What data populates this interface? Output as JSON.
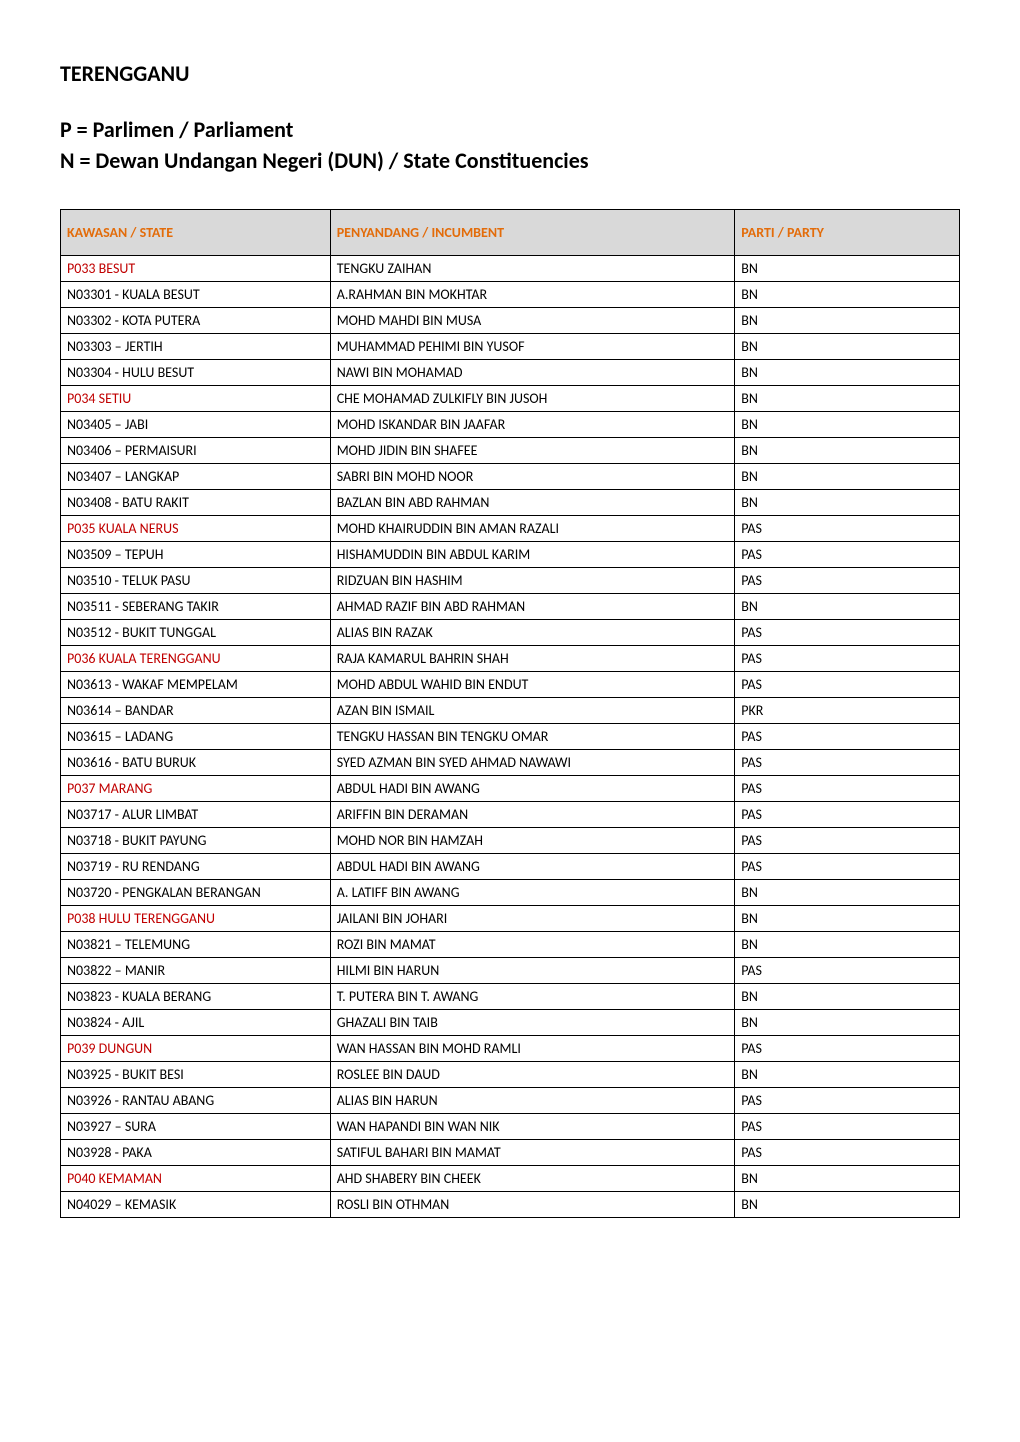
{
  "title": "TERENGGANU",
  "subtitle_line1": "P = Parlimen / Parliament",
  "subtitle_line2": "N = Dewan Undangan Negeri (DUN) / State Constituencies",
  "table": {
    "header_bg": "#d9d9d9",
    "header_color": "#e36c0a",
    "p_row_color": "#c00000",
    "normal_color": "#000000",
    "border_color": "#000000",
    "columns": [
      "KAWASAN / STATE",
      "PENYANDANG / INCUMBENT",
      "PARTI / PARTY"
    ],
    "groups": [
      {
        "p": {
          "kawasan": "P033 BESUT",
          "penyandang": "TENGKU ZAIHAN",
          "parti": "BN"
        },
        "n": [
          {
            "kawasan": "N03301 - KUALA BESUT",
            "penyandang": "A.RAHMAN BIN MOKHTAR",
            "parti": "BN"
          },
          {
            "kawasan": "N03302 - KOTA PUTERA",
            "penyandang": "MOHD MAHDI BIN MUSA",
            "parti": "BN"
          },
          {
            "kawasan": "N03303 – JERTIH",
            "penyandang": "MUHAMMAD PEHIMI BIN YUSOF",
            "parti": "BN"
          },
          {
            "kawasan": "N03304 - HULU BESUT",
            "penyandang": "NAWI BIN MOHAMAD",
            "parti": "BN"
          }
        ]
      },
      {
        "p": {
          "kawasan": "P034 SETIU",
          "penyandang": "CHE MOHAMAD ZULKIFLY BIN JUSOH",
          "parti": "BN"
        },
        "n": [
          {
            "kawasan": "N03405 – JABI",
            "penyandang": "MOHD ISKANDAR BIN JAAFAR",
            "parti": "BN"
          },
          {
            "kawasan": "N03406 – PERMAISURI",
            "penyandang": "MOHD JIDIN BIN SHAFEE",
            "parti": "BN"
          },
          {
            "kawasan": "N03407 – LANGKAP",
            "penyandang": "SABRI BIN MOHD NOOR",
            "parti": "BN"
          },
          {
            "kawasan": "N03408 - BATU RAKIT",
            "penyandang": "BAZLAN BIN ABD RAHMAN",
            "parti": "BN"
          }
        ]
      },
      {
        "p": {
          "kawasan": "P035 KUALA NERUS",
          "penyandang": "MOHD KHAIRUDDIN BIN AMAN RAZALI",
          "parti": "PAS"
        },
        "n": [
          {
            "kawasan": "N03509 – TEPUH",
            "penyandang": "HISHAMUDDIN BIN ABDUL KARIM",
            "parti": "PAS"
          },
          {
            "kawasan": "N03510 - TELUK PASU",
            "penyandang": "RIDZUAN BIN HASHIM",
            "parti": "PAS"
          },
          {
            "kawasan": "N03511 - SEBERANG TAKIR",
            "penyandang": "AHMAD RAZIF BIN ABD RAHMAN",
            "parti": "BN"
          },
          {
            "kawasan": "N03512 - BUKIT TUNGGAL",
            "penyandang": "ALIAS BIN RAZAK",
            "parti": "PAS"
          }
        ]
      },
      {
        "p": {
          "kawasan": "P036 KUALA TERENGGANU",
          "penyandang": "RAJA KAMARUL BAHRIN SHAH",
          "parti": "PAS"
        },
        "n": [
          {
            "kawasan": "N03613 - WAKAF MEMPELAM",
            "penyandang": "MOHD ABDUL WAHID BIN ENDUT",
            "parti": "PAS"
          },
          {
            "kawasan": "N03614 – BANDAR",
            "penyandang": "AZAN BIN ISMAIL",
            "parti": "PKR"
          },
          {
            "kawasan": "N03615 – LADANG",
            "penyandang": "TENGKU HASSAN BIN TENGKU OMAR",
            "parti": "PAS"
          },
          {
            "kawasan": "N03616 - BATU BURUK",
            "penyandang": "SYED AZMAN BIN SYED AHMAD NAWAWI",
            "parti": "PAS"
          }
        ]
      },
      {
        "p": {
          "kawasan": "P037 MARANG",
          "penyandang": "ABDUL HADI BIN AWANG",
          "parti": "PAS"
        },
        "n": [
          {
            "kawasan": "N03717 - ALUR LIMBAT",
            "penyandang": "ARIFFIN BIN DERAMAN",
            "parti": "PAS"
          },
          {
            "kawasan": "N03718 - BUKIT PAYUNG",
            "penyandang": "MOHD NOR BIN HAMZAH",
            "parti": "PAS"
          },
          {
            "kawasan": "N03719 - RU RENDANG",
            "penyandang": "ABDUL HADI BIN AWANG",
            "parti": "PAS"
          },
          {
            "kawasan": "N03720 - PENGKALAN BERANGAN",
            "penyandang": "A. LATIFF BIN AWANG",
            "parti": "BN"
          }
        ]
      },
      {
        "p": {
          "kawasan": "P038 HULU TERENGGANU",
          "penyandang": "JAILANI BIN JOHARI",
          "parti": "BN"
        },
        "n": [
          {
            "kawasan": "N03821 – TELEMUNG",
            "penyandang": "ROZI BIN MAMAT",
            "parti": "BN"
          },
          {
            "kawasan": "N03822 – MANIR",
            "penyandang": "HILMI BIN HARUN",
            "parti": "PAS"
          },
          {
            "kawasan": "N03823 - KUALA BERANG",
            "penyandang": "T. PUTERA BIN T. AWANG",
            "parti": "BN"
          },
          {
            "kawasan": "N03824 - AJIL",
            "penyandang": "GHAZALI BIN TAIB",
            "parti": "BN"
          }
        ]
      },
      {
        "p": {
          "kawasan": "P039 DUNGUN",
          "penyandang": "WAN HASSAN BIN MOHD RAMLI",
          "parti": "PAS"
        },
        "n": [
          {
            "kawasan": "N03925 - BUKIT BESI",
            "penyandang": "ROSLEE BIN DAUD",
            "parti": "BN"
          },
          {
            "kawasan": "N03926 - RANTAU ABANG",
            "penyandang": "ALIAS BIN HARUN",
            "parti": "PAS"
          },
          {
            "kawasan": "N03927 – SURA",
            "penyandang": "WAN HAPANDI BIN WAN NIK",
            "parti": "PAS"
          },
          {
            "kawasan": "N03928 - PAKA",
            "penyandang": "SATIFUL BAHARI BIN MAMAT",
            "parti": "PAS"
          }
        ]
      },
      {
        "p": {
          "kawasan": "P040 KEMAMAN",
          "penyandang": "AHD SHABERY BIN CHEEK",
          "parti": "BN"
        },
        "n": [
          {
            "kawasan": "N04029 – KEMASIK",
            "penyandang": "ROSLI BIN OTHMAN",
            "parti": "BN"
          }
        ]
      }
    ]
  }
}
